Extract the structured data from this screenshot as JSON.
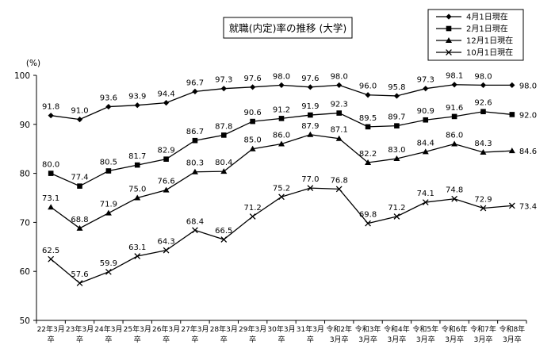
{
  "chart_data": {
    "type": "line",
    "title": "就職(内定)率の推移 (大学)",
    "ylabel": "(%)",
    "ylim": [
      50,
      100
    ],
    "yticks": [
      50,
      60,
      70,
      80,
      90,
      100
    ],
    "grid": false,
    "legend_position": "top-right",
    "categories": [
      [
        "22年3月",
        "卒"
      ],
      [
        "23年3月",
        "卒"
      ],
      [
        "24年3月",
        "卒"
      ],
      [
        "25年3月",
        "卒"
      ],
      [
        "26年3月",
        "卒"
      ],
      [
        "27年3月",
        "卒"
      ],
      [
        "28年3月",
        "卒"
      ],
      [
        "29年3月",
        "卒"
      ],
      [
        "30年3月",
        "卒"
      ],
      [
        "31年3月",
        "卒"
      ],
      [
        "令和2年",
        "3月卒"
      ],
      [
        "令和3年",
        "3月卒"
      ],
      [
        "令和4年",
        "3月卒"
      ],
      [
        "令和5年",
        "3月卒"
      ],
      [
        "令和6年",
        "3月卒"
      ],
      [
        "令和7年",
        "3月卒"
      ],
      [
        "令和8年",
        "3月卒"
      ]
    ],
    "series": [
      {
        "name": "4月1日現在",
        "marker": "diamond",
        "labels": [
          "91.8",
          "91.0",
          "93.6",
          "93.9",
          "94.4",
          "96.7",
          "97.3",
          "97.6",
          "98.0",
          "97.6",
          "98.0",
          "96.0",
          "95.8",
          "97.3",
          "98.1",
          "98.0",
          "98.0"
        ],
        "values": [
          91.8,
          91.0,
          93.6,
          93.9,
          94.4,
          96.7,
          97.3,
          97.6,
          98.0,
          97.6,
          98.0,
          96.0,
          95.8,
          97.3,
          98.1,
          98.0,
          98.0
        ]
      },
      {
        "name": "2月1日現在",
        "marker": "square",
        "labels": [
          "80.0",
          "77.4",
          "80.5",
          "81.7",
          "82.9",
          "86.7",
          "87.8",
          "90.6",
          "91.2",
          "91.9",
          "92.3",
          "89.5",
          "89.7",
          "90.9",
          "91.6",
          "92.6",
          "92.0"
        ],
        "values": [
          80.0,
          77.4,
          80.5,
          81.7,
          82.9,
          86.7,
          87.8,
          90.6,
          91.2,
          91.9,
          92.3,
          89.5,
          89.7,
          90.9,
          91.6,
          92.6,
          92.0
        ]
      },
      {
        "name": "12月1日現在",
        "marker": "triangle",
        "labels": [
          "73.1",
          "68.8",
          "71.9",
          "75.0",
          "76.6",
          "80.3",
          "80.4",
          "85.0",
          "86.0",
          "87.9",
          "87.1",
          "82.2",
          "83.0",
          "84.4",
          "86.0",
          "84.3",
          "84.6"
        ],
        "values": [
          73.1,
          68.8,
          71.9,
          75.0,
          76.6,
          80.3,
          80.4,
          85.0,
          86.0,
          87.9,
          87.1,
          82.2,
          83.0,
          84.4,
          86.0,
          84.3,
          84.6
        ]
      },
      {
        "name": "10月1日現在",
        "marker": "x",
        "labels": [
          "62.5",
          "57.6",
          "59.9",
          "63.1",
          "64.3",
          "68.4",
          "66.5",
          "71.2",
          "75.2",
          "77.0",
          "76.8",
          "69.8",
          "71.2",
          "74.1",
          "74.8",
          "72.9",
          "73.4"
        ],
        "values": [
          62.5,
          57.6,
          59.9,
          63.1,
          64.3,
          68.4,
          66.5,
          71.2,
          75.2,
          77.0,
          76.8,
          69.8,
          71.2,
          74.1,
          74.8,
          72.9,
          73.4
        ]
      }
    ]
  }
}
